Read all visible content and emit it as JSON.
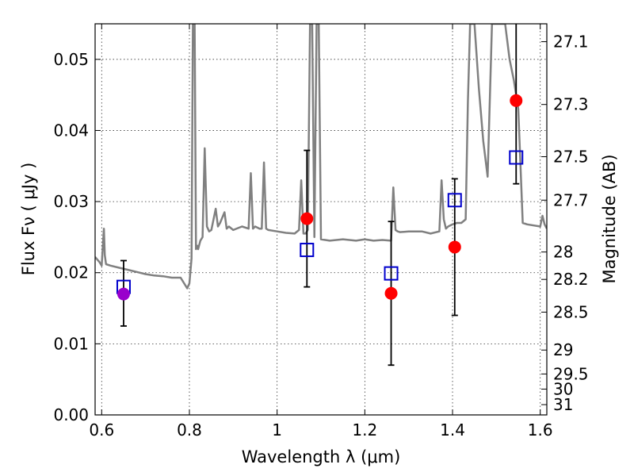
{
  "chart_data": {
    "type": "scatter",
    "title": "",
    "xlabel": "Wavelength  λ (μm)",
    "ylabel": "Flux  Fν  ( μJy )",
    "y2label": "Magnitude (AB)",
    "xlim": [
      0.585,
      1.615
    ],
    "ylim": [
      0.0,
      0.055
    ],
    "grid": true,
    "x_ticks": [
      0.6,
      0.8,
      1.0,
      1.2,
      1.4,
      1.6
    ],
    "x_tick_labels": [
      "0.6",
      "0.8",
      "1",
      "1.2",
      "1.4",
      "1.6"
    ],
    "y_ticks": [
      0.0,
      0.01,
      0.02,
      0.03,
      0.04,
      0.05
    ],
    "y_tick_labels": [
      "0.00",
      "0.01",
      "0.02",
      "0.03",
      "0.04",
      "0.05"
    ],
    "y2_ticks": [
      27.1,
      27.3,
      27.5,
      27.7,
      28,
      28.2,
      28.5,
      29,
      29.5,
      30,
      31
    ],
    "y2_tick_labels": [
      "27.1",
      "27.3",
      "27.5",
      "27.7",
      "28",
      "28.2",
      "28.5",
      "29",
      "29.5",
      "30",
      "31"
    ],
    "colors": {
      "spectrum": "#808080",
      "observed": "#ff0000",
      "observed_first": "#9900cc",
      "model": "#0000cc",
      "errorbar": "#000000"
    },
    "series": [
      {
        "type": "line",
        "x": [
          0.585,
          0.595,
          0.6,
          0.605,
          0.607,
          0.61,
          0.62,
          0.64,
          0.66,
          0.68,
          0.7,
          0.72,
          0.74,
          0.76,
          0.78,
          0.795,
          0.8,
          0.805,
          0.808,
          0.812,
          0.815,
          0.818,
          0.82,
          0.825,
          0.83,
          0.835,
          0.84,
          0.845,
          0.85,
          0.86,
          0.865,
          0.87,
          0.88,
          0.885,
          0.89,
          0.9,
          0.92,
          0.935,
          0.94,
          0.945,
          0.95,
          0.96,
          0.965,
          0.97,
          0.975,
          0.98,
          1.0,
          1.02,
          1.04,
          1.05,
          1.055,
          1.06,
          1.065,
          1.07,
          1.075,
          1.08,
          1.085,
          1.09,
          1.095,
          1.1,
          1.12,
          1.15,
          1.18,
          1.2,
          1.22,
          1.24,
          1.26,
          1.265,
          1.27,
          1.275,
          1.28,
          1.3,
          1.33,
          1.35,
          1.37,
          1.375,
          1.38,
          1.385,
          1.39,
          1.4,
          1.41,
          1.42,
          1.43,
          1.435,
          1.44,
          1.445,
          1.45,
          1.46,
          1.47,
          1.48,
          1.49,
          1.5,
          1.51,
          1.52,
          1.53,
          1.54,
          1.55,
          1.56,
          1.57,
          1.6,
          1.605,
          1.61,
          1.615
        ],
        "y": [
          0.0222,
          0.0215,
          0.021,
          0.0262,
          0.0225,
          0.0212,
          0.021,
          0.0207,
          0.0204,
          0.0201,
          0.0198,
          0.0196,
          0.0195,
          0.0193,
          0.0193,
          0.0178,
          0.0185,
          0.022,
          0.055,
          0.055,
          0.0233,
          0.0238,
          0.0233,
          0.0245,
          0.025,
          0.0375,
          0.0265,
          0.0258,
          0.026,
          0.029,
          0.0265,
          0.027,
          0.0285,
          0.0262,
          0.0265,
          0.026,
          0.0265,
          0.0262,
          0.034,
          0.0262,
          0.0265,
          0.0262,
          0.0262,
          0.0355,
          0.0262,
          0.026,
          0.0258,
          0.0256,
          0.0255,
          0.026,
          0.033,
          0.0255,
          0.0255,
          0.026,
          0.055,
          0.055,
          0.025,
          0.055,
          0.055,
          0.0247,
          0.0245,
          0.0247,
          0.0245,
          0.0247,
          0.0245,
          0.0246,
          0.0245,
          0.032,
          0.026,
          0.0258,
          0.0257,
          0.0258,
          0.0258,
          0.0255,
          0.0258,
          0.033,
          0.0275,
          0.0262,
          0.0265,
          0.0268,
          0.027,
          0.027,
          0.0275,
          0.044,
          0.055,
          0.055,
          0.055,
          0.046,
          0.0385,
          0.0335,
          0.055,
          0.055,
          0.055,
          0.055,
          0.05,
          0.047,
          0.043,
          0.027,
          0.0268,
          0.0265,
          0.028,
          0.0268,
          0.0262
        ]
      },
      {
        "type": "errorbar",
        "x": [
          0.65,
          1.068,
          1.26,
          1.405,
          1.545
        ],
        "y": [
          0.017,
          0.0276,
          0.0171,
          0.0236,
          0.0442
        ],
        "yerr_low": [
          0.0045,
          0.0096,
          0.0101,
          0.0096,
          0.0117
        ],
        "yerr_high": [
          0.0047,
          0.0096,
          0.0101,
          0.0096,
          0.0117
        ]
      },
      {
        "type": "scatter",
        "marker": "square",
        "x": [
          0.65,
          1.068,
          1.26,
          1.405,
          1.545
        ],
        "y": [
          0.018,
          0.0232,
          0.0199,
          0.0302,
          0.0362
        ]
      }
    ]
  }
}
